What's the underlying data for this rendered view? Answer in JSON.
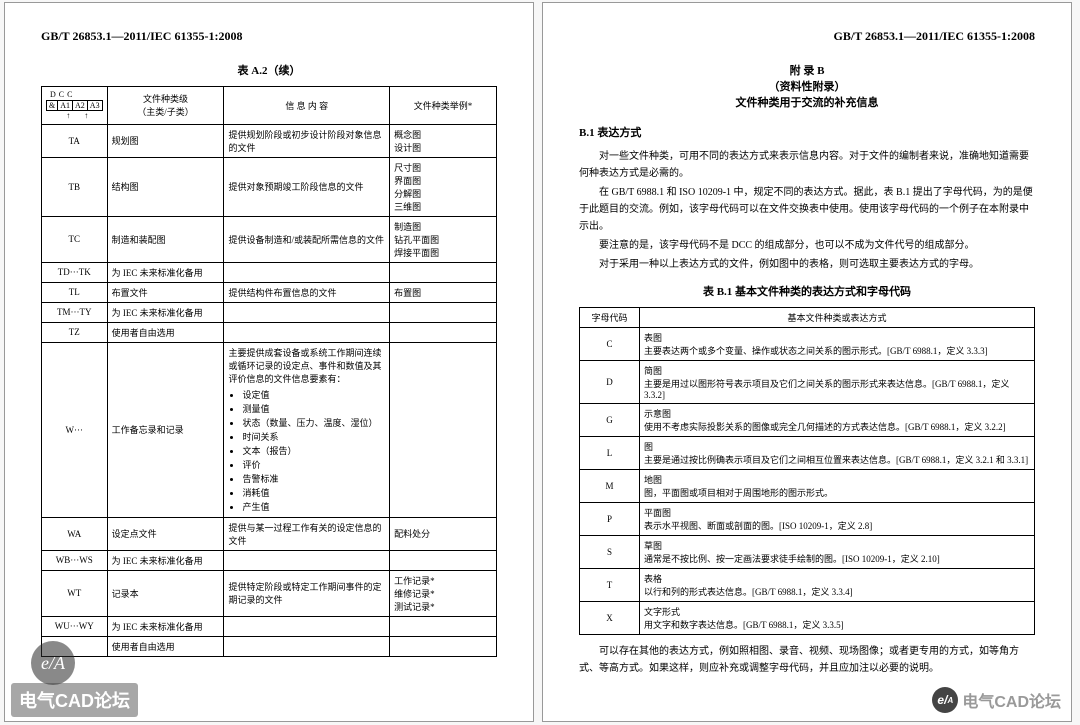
{
  "standard_number": "GB/T 26853.1—2011/IEC 61355-1:2008",
  "left_caption": "表 A.2（续）",
  "left_headers": {
    "kind": "文件种类级\n（主类/子类）",
    "info": "信 息 内 容",
    "example": "文件种类举例*"
  },
  "dcc_top": [
    "D",
    "C",
    "C"
  ],
  "dcc_cells": [
    "A1",
    "A2",
    "A3"
  ],
  "left_rows": [
    {
      "code": "TA",
      "kind": "规划图",
      "info": "提供规划阶段或初步设计阶段对象信息的文件",
      "ex": "概念图\n设计图"
    },
    {
      "code": "TB",
      "kind": "结构图",
      "info": "提供对象预期竣工阶段信息的文件",
      "ex": "尺寸图\n界面图\n分解图\n三维图"
    },
    {
      "code": "TC",
      "kind": "制造和装配图",
      "info": "提供设备制造和/或装配所需信息的文件",
      "ex": "制造图\n钻孔平面图\n焊接平面图"
    },
    {
      "code": "TD···TK",
      "kind": "为 IEC 未来标准化备用",
      "info": "",
      "ex": ""
    },
    {
      "code": "TL",
      "kind": "布置文件",
      "info": "提供结构件布置信息的文件",
      "ex": "布置图"
    },
    {
      "code": "TM···TY",
      "kind": "为 IEC 未来标准化备用",
      "info": "",
      "ex": ""
    },
    {
      "code": "TZ",
      "kind": "使用者自由选用",
      "info": "",
      "ex": ""
    }
  ],
  "left_w_row": {
    "code": "W···",
    "kind": "工作备忘录和记录",
    "info_lead": "主要提供成套设备或系统工作期间连续或循环记录的设定点、事件和数值及其评价信息的文件信息要素有：",
    "bullets": [
      "设定值",
      "测量值",
      "状态（数量、压力、温度、湿位）",
      "时间关系",
      "文本（报告）",
      "评价",
      "告警标准",
      "消耗值",
      "产生值"
    ],
    "ex": ""
  },
  "left_rows2": [
    {
      "code": "WA",
      "kind": "设定点文件",
      "info": "提供与某一过程工作有关的设定信息的文件",
      "ex": "配料处分"
    },
    {
      "code": "WB···WS",
      "kind": "为 IEC 未来标准化备用",
      "info": "",
      "ex": ""
    },
    {
      "code": "WT",
      "kind": "记录本",
      "info": "提供特定阶段或特定工作期间事件的定期记录的文件",
      "ex": "工作记录*\n维修记录*\n测试记录*"
    },
    {
      "code": "WU···WY",
      "kind": "为 IEC 未来标准化备用",
      "info": "",
      "ex": ""
    },
    {
      "code": "",
      "kind": "使用者自由选用",
      "info": "",
      "ex": ""
    }
  ],
  "right_appendix": {
    "line1": "附 录 B",
    "line2": "（资料性附录）",
    "line3": "文件种类用于交流的补充信息"
  },
  "right_section": "B.1 表达方式",
  "right_paras": [
    "对一些文件种类，可用不同的表达方式来表示信息内容。对于文件的编制者来说，准确地知道需要何种表达方式是必需的。",
    "在 GB/T 6988.1 和 ISO 10209-1 中，规定不同的表达方式。据此，表 B.1 提出了字母代码，为的是便于此题目的交流。例如，该字母代码可以在文件交换表中使用。使用该字母代码的一个例子在本附录中示出。",
    "要注意的是，该字母代码不是 DCC 的组成部分，也可以不成为文件代号的组成部分。",
    "对于采用一种以上表达方式的文件，例如图中的表格，则可选取主要表达方式的字母。"
  ],
  "right_caption": "表 B.1 基本文件种类的表达方式和字母代码",
  "right_headers": {
    "code": "字母代码",
    "desc": "基本文件种类或表达方式"
  },
  "right_rows": [
    {
      "c": "C",
      "d": "表图\n主要表达两个或多个变量、操作或状态之间关系的图示形式。[GB/T 6988.1，定义 3.3.3]"
    },
    {
      "c": "D",
      "d": "简图\n主要是用过以图形符号表示项目及它们之间关系的图示形式来表达信息。[GB/T 6988.1，定义 3.3.2]"
    },
    {
      "c": "G",
      "d": "示意图\n使用不考虑实际投影关系的图像或完全几何描述的方式表达信息。[GB/T 6988.1，定义 3.2.2]"
    },
    {
      "c": "L",
      "d": "图\n主要是通过按比例确表示项目及它们之间相互位置来表达信息。[GB/T 6988.1，定义 3.2.1 和 3.3.1]"
    },
    {
      "c": "M",
      "d": "地图\n图，平面图或项目相对于周围地形的图示形式。"
    },
    {
      "c": "P",
      "d": "平面图\n表示水平视图、断面或剖面的图。[ISO 10209-1，定义 2.8]"
    },
    {
      "c": "S",
      "d": "草图\n通常是不按比例、按一定画法要求徒手绘制的图。[ISO 10209-1，定义 2.10]"
    },
    {
      "c": "T",
      "d": "表格\n以行和列的形式表达信息。[GB/T 6988.1，定义 3.3.4]"
    },
    {
      "c": "X",
      "d": "文字形式\n用文字和数字表达信息。[GB/T 6988.1，定义 3.3.5]"
    }
  ],
  "right_footpara": "可以存在其他的表达方式，例如照相图、录音、视频、现场图像；或者更专用的方式，如等角方式、等高方式。如果这样，则应补充或调整字母代码，并且应加注以必要的说明。",
  "watermarks": {
    "left_text": "电气CAD论坛",
    "circle": "e/A",
    "right_text": "电气CAD论坛"
  }
}
